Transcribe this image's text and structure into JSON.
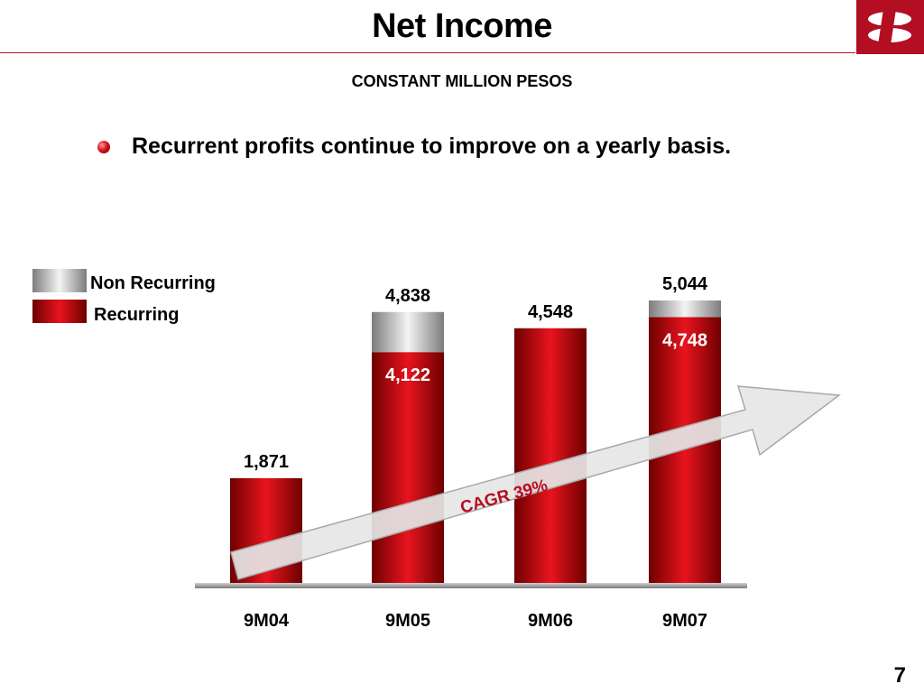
{
  "slide": {
    "title": "Net Income",
    "page_number": "7"
  },
  "bullet": {
    "text": "Recurrent profits continue to improve on a yearly basis.",
    "icon": "red-ball-bullet-icon"
  },
  "logo": {
    "icon": "bank-logo-icon"
  },
  "colors": {
    "brand_red": "#b30e22",
    "recurring": "#c8101e",
    "non_recurring": "#b8b8b8",
    "arrow_fill": "#e6e6e6"
  },
  "chart_data": {
    "type": "bar",
    "stacked": true,
    "title": "CONSTANT MILLION PESOS",
    "categories": [
      "9M04",
      "9M05",
      "9M06",
      "9M07"
    ],
    "series": [
      {
        "name": "Recurring",
        "values": [
          1871,
          4122,
          4548,
          4748
        ]
      },
      {
        "name": "Non Recurring",
        "values": [
          0,
          716,
          0,
          296
        ]
      }
    ],
    "totals": [
      1871,
      4838,
      4548,
      5044
    ],
    "total_labels": [
      "1,871",
      "4,838",
      "4,548",
      "5,044"
    ],
    "recurring_labels": [
      "",
      "4,122",
      "",
      "4,748"
    ],
    "ylim": [
      0,
      5044
    ],
    "grid": false,
    "legend": "top-left",
    "annotation": "CAGR 39%"
  }
}
